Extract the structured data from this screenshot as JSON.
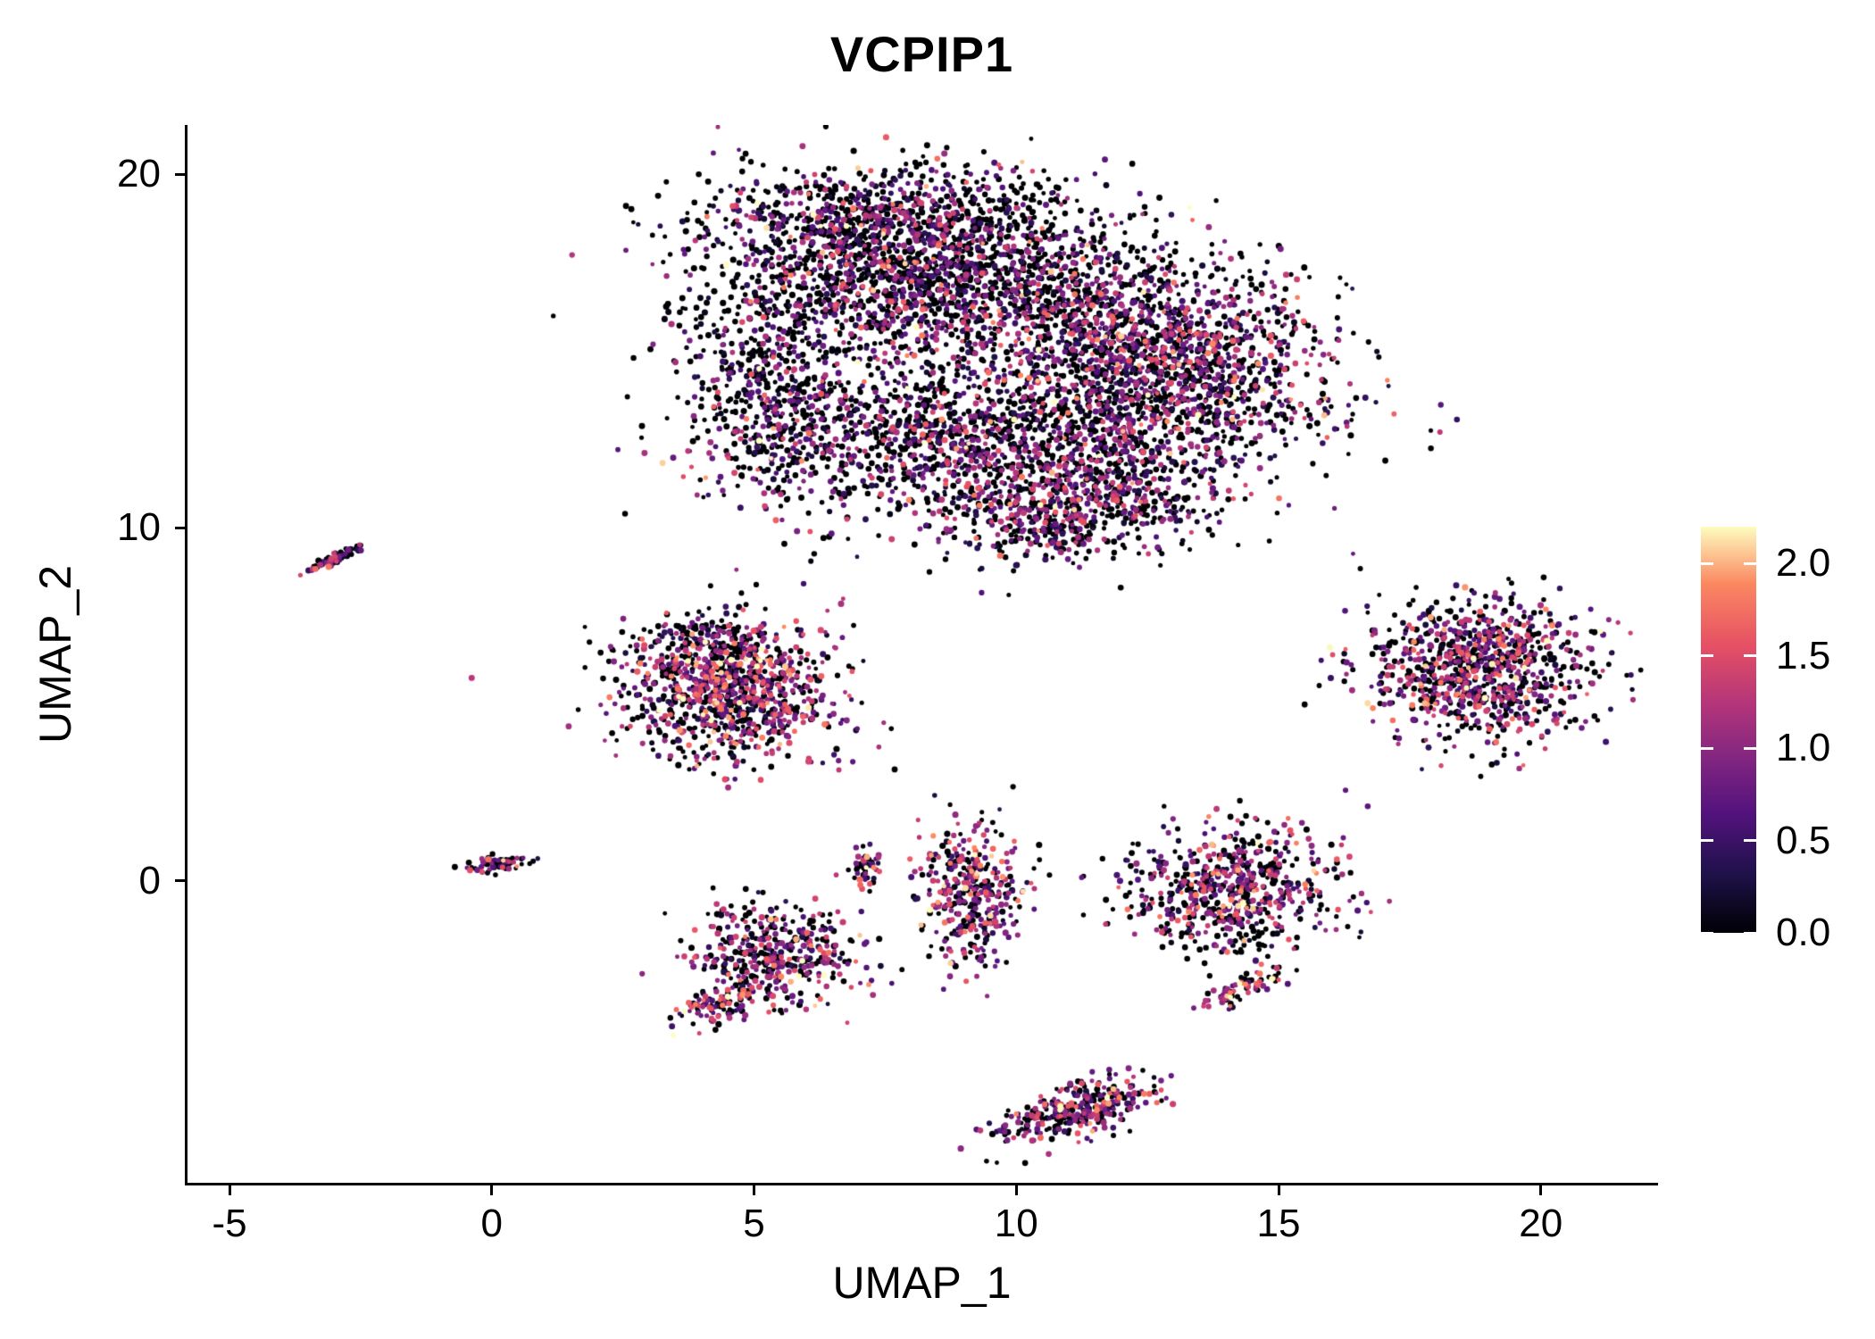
{
  "title": "VCPIP1",
  "colors": {
    "background": "#ffffff",
    "axis": "#000000",
    "text": "#000000",
    "zero_point": "#000004"
  },
  "chart_data": {
    "type": "scatter",
    "title": "VCPIP1",
    "xlabel": "UMAP_1",
    "ylabel": "UMAP_2",
    "xlim": [
      -5.8,
      22.2
    ],
    "ylim": [
      -8.55,
      21.4
    ],
    "xticks": [
      {
        "v": -5,
        "label": "-5"
      },
      {
        "v": 0,
        "label": "0"
      },
      {
        "v": 5,
        "label": "5"
      },
      {
        "v": 10,
        "label": "10"
      },
      {
        "v": 15,
        "label": "15"
      },
      {
        "v": 20,
        "label": "20"
      }
    ],
    "yticks": [
      {
        "v": 20,
        "label": "20"
      },
      {
        "v": 10,
        "label": "10"
      },
      {
        "v": 0,
        "label": "0"
      }
    ],
    "grid": false,
    "legend": {
      "position": "right",
      "kind": "colorbar",
      "color_domain": [
        0,
        2.2
      ],
      "ticks": [
        {
          "v": 2.0,
          "label": "2.0"
        },
        {
          "v": 1.5,
          "label": "1.5"
        },
        {
          "v": 1.0,
          "label": "1.0"
        },
        {
          "v": 0.5,
          "label": "0.5"
        },
        {
          "v": 0.0,
          "label": "0.0"
        }
      ]
    },
    "colormap": {
      "name": "magma",
      "stops": [
        {
          "t": 0.0,
          "color": "#000004"
        },
        {
          "t": 0.14,
          "color": "#1D1147"
        },
        {
          "t": 0.29,
          "color": "#51127C"
        },
        {
          "t": 0.43,
          "color": "#822681"
        },
        {
          "t": 0.57,
          "color": "#B63679"
        },
        {
          "t": 0.71,
          "color": "#E65164"
        },
        {
          "t": 0.86,
          "color": "#FB8861"
        },
        {
          "t": 1.0,
          "color": "#FCFDBF"
        }
      ]
    },
    "point_radius_px": 3.0,
    "expr_sd": 0.55,
    "seed": 42,
    "clusters": [
      {
        "name": "top-main",
        "cx": 8.3,
        "cy": 17.3,
        "sx": 2.1,
        "sy": 1.35,
        "rot": -0.1,
        "n": 2000,
        "zero_frac": 0.52,
        "expr_mean": 0.75
      },
      {
        "name": "top-right-lobe",
        "cx": 12.8,
        "cy": 14.8,
        "sx": 1.7,
        "sy": 1.35,
        "rot": -0.35,
        "n": 1500,
        "zero_frac": 0.42,
        "expr_mean": 0.85
      },
      {
        "name": "top-lower-band",
        "cx": 9.6,
        "cy": 12.3,
        "sx": 2.2,
        "sy": 1.1,
        "rot": 0.05,
        "n": 1100,
        "zero_frac": 0.5,
        "expr_mean": 0.8
      },
      {
        "name": "top-left-arm",
        "cx": 5.2,
        "cy": 13.9,
        "sx": 0.75,
        "sy": 1.5,
        "rot": 0.15,
        "n": 450,
        "zero_frac": 0.55,
        "expr_mean": 0.7
      },
      {
        "name": "top-upper-edge",
        "cx": 7.2,
        "cy": 18.9,
        "sx": 1.6,
        "sy": 0.55,
        "rot": 0.05,
        "n": 350,
        "zero_frac": 0.5,
        "expr_mean": 0.75
      },
      {
        "name": "top-lower-right",
        "cx": 11.6,
        "cy": 10.8,
        "sx": 1.3,
        "sy": 0.75,
        "rot": 0.2,
        "n": 450,
        "zero_frac": 0.45,
        "expr_mean": 0.8
      },
      {
        "name": "top-sparse-mid",
        "cx": 7.6,
        "cy": 13.2,
        "sx": 1.6,
        "sy": 1.1,
        "rot": 0.0,
        "n": 260,
        "zero_frac": 0.6,
        "expr_mean": 0.65
      },
      {
        "name": "top-neck",
        "cx": 10.2,
        "cy": 9.9,
        "sx": 0.8,
        "sy": 0.5,
        "rot": 0.0,
        "n": 130,
        "zero_frac": 0.5,
        "expr_mean": 0.8
      },
      {
        "name": "streak-left",
        "cx": -2.95,
        "cy": 9.15,
        "sx": 0.33,
        "sy": 0.07,
        "rot": 0.62,
        "n": 70,
        "zero_frac": 0.45,
        "expr_mean": 0.8
      },
      {
        "name": "left-mid",
        "cx": 4.55,
        "cy": 5.3,
        "sx": 1.05,
        "sy": 0.95,
        "rot": 0.1,
        "n": 950,
        "zero_frac": 0.38,
        "expr_mean": 1.0
      },
      {
        "name": "left-mid-top",
        "cx": 4.1,
        "cy": 6.9,
        "sx": 0.8,
        "sy": 0.45,
        "rot": 0.0,
        "n": 140,
        "zero_frac": 0.55,
        "expr_mean": 0.8
      },
      {
        "name": "right-mid",
        "cx": 18.85,
        "cy": 6.0,
        "sx": 1.05,
        "sy": 1.0,
        "rot": -0.2,
        "n": 950,
        "zero_frac": 0.42,
        "expr_mean": 0.95
      },
      {
        "name": "tiny-origin",
        "cx": 0.15,
        "cy": 0.45,
        "sx": 0.28,
        "sy": 0.11,
        "rot": 0.25,
        "n": 70,
        "zero_frac": 0.5,
        "expr_mean": 0.9
      },
      {
        "name": "small-seven",
        "cx": 7.15,
        "cy": 0.3,
        "sx": 0.13,
        "sy": 0.28,
        "rot": 0.0,
        "n": 45,
        "zero_frac": 0.35,
        "expr_mean": 1.0
      },
      {
        "name": "mid-vertical",
        "cx": 9.1,
        "cy": -0.4,
        "sx": 0.5,
        "sy": 1.05,
        "rot": 0.0,
        "n": 380,
        "zero_frac": 0.32,
        "expr_mean": 1.05
      },
      {
        "name": "low-left",
        "cx": 5.35,
        "cy": -2.1,
        "sx": 0.75,
        "sy": 0.75,
        "rot": 0.3,
        "n": 420,
        "zero_frac": 0.4,
        "expr_mean": 1.0
      },
      {
        "name": "low-left-tail",
        "cx": 4.25,
        "cy": -3.55,
        "sx": 0.45,
        "sy": 0.22,
        "rot": 0.5,
        "n": 90,
        "zero_frac": 0.35,
        "expr_mean": 1.05
      },
      {
        "name": "right-low",
        "cx": 14.15,
        "cy": -0.25,
        "sx": 1.0,
        "sy": 0.9,
        "rot": 0.0,
        "n": 650,
        "zero_frac": 0.42,
        "expr_mean": 0.95
      },
      {
        "name": "right-low-tail",
        "cx": 14.3,
        "cy": -3.0,
        "sx": 0.55,
        "sy": 0.18,
        "rot": 0.55,
        "n": 70,
        "zero_frac": 0.3,
        "expr_mean": 1.1
      },
      {
        "name": "bottom",
        "cx": 11.15,
        "cy": -6.5,
        "sx": 0.8,
        "sy": 0.35,
        "rot": 0.4,
        "n": 330,
        "zero_frac": 0.42,
        "expr_mean": 0.95
      }
    ]
  }
}
